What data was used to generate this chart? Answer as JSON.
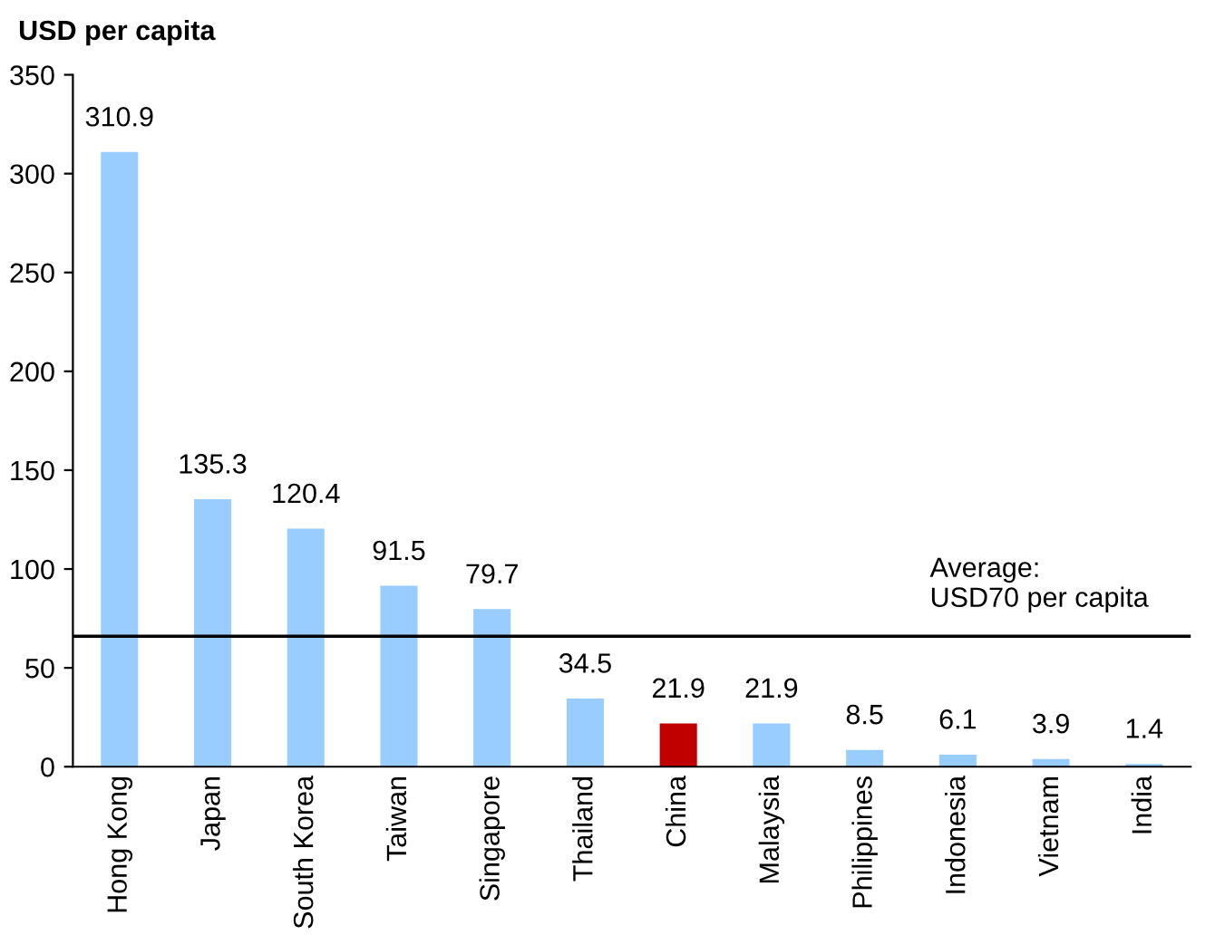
{
  "chart_data": {
    "type": "bar",
    "ylabel": "USD per capita",
    "categories": [
      "Hong Kong",
      "Japan",
      "South Korea",
      "Taiwan",
      "Singapore",
      "Thailand",
      "China",
      "Malaysia",
      "Philippines",
      "Indonesia",
      "Vietnam",
      "India"
    ],
    "values": [
      310.9,
      135.3,
      120.4,
      91.5,
      79.7,
      34.5,
      21.9,
      21.9,
      8.5,
      6.1,
      3.9,
      1.4
    ],
    "colors": [
      "#99ccff",
      "#99ccff",
      "#99ccff",
      "#99ccff",
      "#99ccff",
      "#99ccff",
      "#c00000",
      "#99ccff",
      "#99ccff",
      "#99ccff",
      "#99ccff",
      "#99ccff"
    ],
    "ylim": [
      0,
      350
    ],
    "yticks": [
      0,
      50,
      100,
      150,
      200,
      250,
      300,
      350
    ],
    "data_labels": true,
    "grid": false,
    "legend": false,
    "ref_lines": [
      {
        "axis": "y",
        "value": 66,
        "label": "Average:\nUSD70 per capita",
        "color": "#000000",
        "line_style": "solid"
      }
    ]
  }
}
